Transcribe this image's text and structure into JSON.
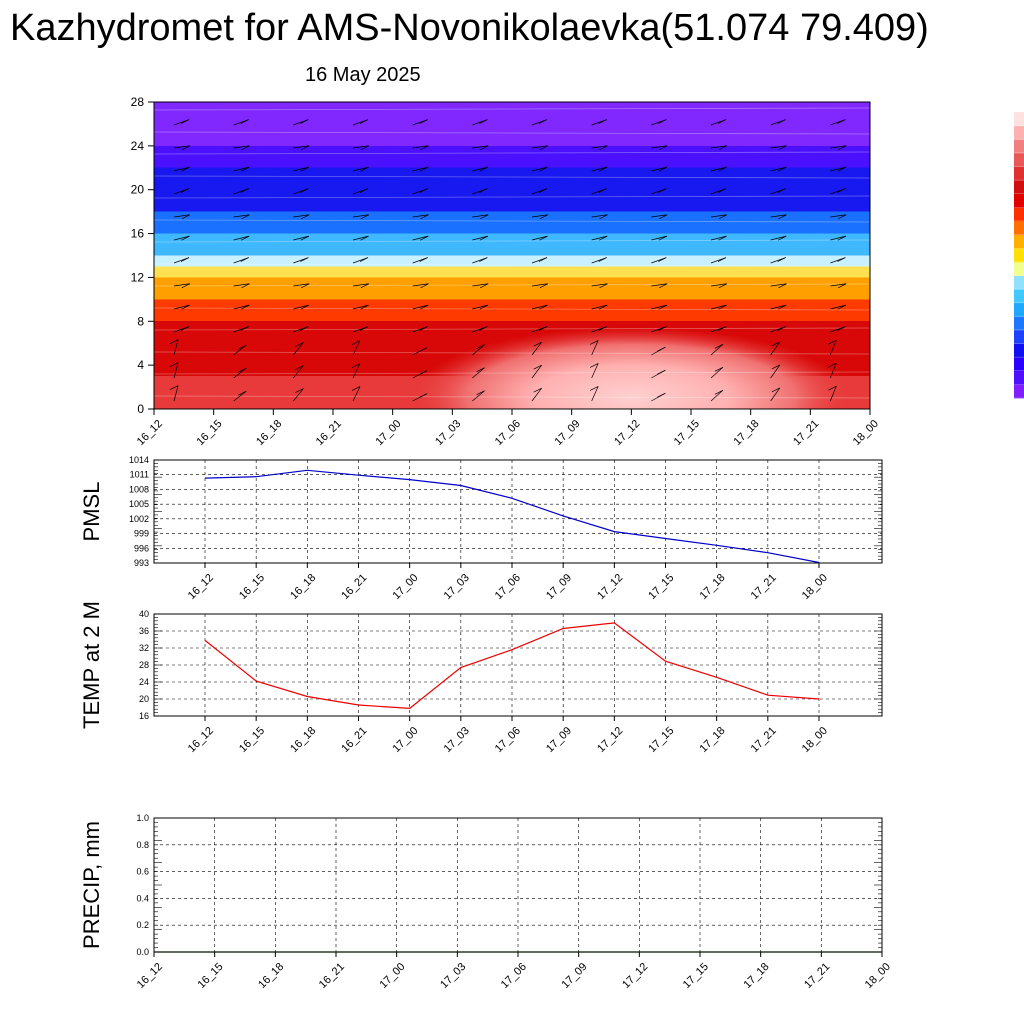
{
  "title": "Kazhydromet for AMS-Novonikolaevka(51.074 79.409)",
  "subtitle": "16 May 2025",
  "colorbar": {
    "colors": [
      "#7f1fff",
      "#5010ff",
      "#2a00ff",
      "#1010f0",
      "#1e40ff",
      "#1e78ff",
      "#20a8ff",
      "#40c8ff",
      "#90e0ff",
      "#f0ff90",
      "#ffe000",
      "#ffb000",
      "#ff7000",
      "#ff3000",
      "#e00000",
      "#d01010",
      "#e03030",
      "#e85858",
      "#f08080",
      "#ffb0b0",
      "#ffe0e0"
    ]
  },
  "chart_data": [
    {
      "type": "heatmap",
      "title": "",
      "xlabel": "",
      "ylabel": "",
      "ylim": [
        0,
        28
      ],
      "yticks": [
        "0",
        "4",
        "8",
        "12",
        "16",
        "20",
        "24",
        "28"
      ],
      "xticks": [
        "16_12",
        "16_15",
        "16_18",
        "16_21",
        "17_00",
        "17_03",
        "17_06",
        "17_09",
        "17_12",
        "17_15",
        "17_18",
        "17_21",
        "18_00"
      ],
      "color_bands": [
        {
          "y_from": 0,
          "y_to": 3,
          "color": "#e83a3a"
        },
        {
          "y_from": 3,
          "y_to": 8,
          "color": "#d80808"
        },
        {
          "y_from": 8,
          "y_to": 10,
          "color": "#ff3a00"
        },
        {
          "y_from": 10,
          "y_to": 12,
          "color": "#ffa000"
        },
        {
          "y_from": 12,
          "y_to": 13,
          "color": "#ffe050"
        },
        {
          "y_from": 13,
          "y_to": 14,
          "color": "#c8f0ff"
        },
        {
          "y_from": 14,
          "y_to": 16,
          "color": "#40b8ff"
        },
        {
          "y_from": 16,
          "y_to": 18,
          "color": "#1a70ff"
        },
        {
          "y_from": 18,
          "y_to": 22,
          "color": "#1818f0"
        },
        {
          "y_from": 22,
          "y_to": 24,
          "color": "#4a10ff"
        },
        {
          "y_from": 24,
          "y_to": 28,
          "color": "#8028ff"
        }
      ],
      "warm_spot": {
        "x_center": "17_12",
        "color": "#ffb0b0"
      }
    },
    {
      "type": "line",
      "ylabel": "PMSL",
      "ylim": [
        993,
        1014
      ],
      "yticks": [
        "993",
        "996",
        "999",
        "1002",
        "1005",
        "1008",
        "1011",
        "1014"
      ],
      "x": [
        "16_12",
        "16_15",
        "16_18",
        "16_21",
        "17_00",
        "17_03",
        "17_06",
        "17_09",
        "17_12",
        "17_15",
        "17_18",
        "17_21",
        "18_00"
      ],
      "series": [
        {
          "values": [
            1010.3,
            1010.6,
            1011.9,
            1010.9,
            1010.0,
            1008.8,
            1006.2,
            1002.6,
            999.4,
            998.0,
            996.6,
            995.1,
            993.1
          ],
          "color": "#0000cc"
        }
      ]
    },
    {
      "type": "line",
      "ylabel": "TEMP at 2 M",
      "ylim": [
        16,
        40
      ],
      "yticks": [
        "16",
        "20",
        "24",
        "28",
        "32",
        "36",
        "40"
      ],
      "x": [
        "16_12",
        "16_15",
        "16_18",
        "16_21",
        "17_00",
        "17_03",
        "17_06",
        "17_09",
        "17_12",
        "17_15",
        "17_18",
        "17_21",
        "18_00"
      ],
      "series": [
        {
          "values": [
            33.8,
            24.2,
            20.6,
            18.6,
            17.8,
            27.4,
            31.6,
            36.6,
            37.9,
            28.9,
            25.1,
            20.9,
            20.0
          ],
          "color": "#ee0000"
        }
      ]
    },
    {
      "type": "line",
      "ylabel": "PRECIP, mm",
      "ylim": [
        0.0,
        1.0
      ],
      "yticks": [
        "0.0",
        "0.2",
        "0.4",
        "0.6",
        "0.8",
        "1.0"
      ],
      "x": [
        "16_12",
        "16_15",
        "16_18",
        "16_21",
        "17_00",
        "17_03",
        "17_06",
        "17_09",
        "17_12",
        "17_15",
        "17_18",
        "17_21",
        "18_00"
      ],
      "series": [
        {
          "values": [
            0,
            0,
            0,
            0,
            0,
            0,
            0,
            0,
            0,
            0,
            0,
            0,
            0
          ],
          "color": "#006400"
        }
      ]
    }
  ]
}
